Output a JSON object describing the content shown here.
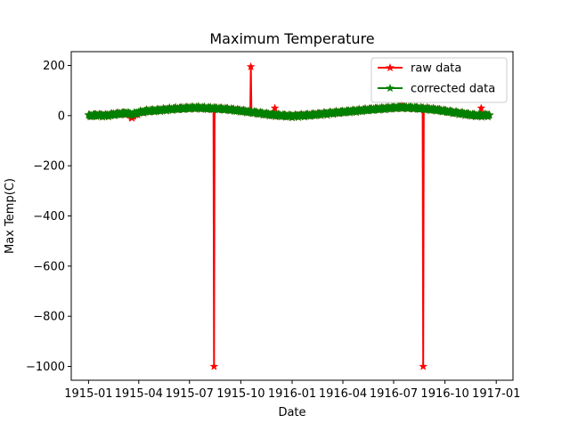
{
  "chart_data": {
    "type": "line",
    "title": "Maximum Temperature",
    "xlabel": "Date",
    "ylabel": "Max Temp(C)",
    "x_range": [
      "1914-12-01",
      "1917-01-31"
    ],
    "ylim": [
      -1055,
      255
    ],
    "x_ticks": [
      {
        "date": "1915-01-01",
        "label": "1915-01"
      },
      {
        "date": "1915-04-01",
        "label": "1915-04"
      },
      {
        "date": "1915-07-01",
        "label": "1915-07"
      },
      {
        "date": "1915-10-01",
        "label": "1915-10"
      },
      {
        "date": "1916-01-01",
        "label": "1916-01"
      },
      {
        "date": "1916-04-01",
        "label": "1916-04"
      },
      {
        "date": "1916-07-01",
        "label": "1916-07"
      },
      {
        "date": "1916-10-01",
        "label": "1916-10"
      },
      {
        "date": "1917-01-01",
        "label": "1917-01"
      }
    ],
    "y_ticks": [
      {
        "value": 200,
        "label": "200"
      },
      {
        "value": 0,
        "label": "0"
      },
      {
        "value": -200,
        "label": "−200"
      },
      {
        "value": -400,
        "label": "−400"
      },
      {
        "value": -600,
        "label": "−600"
      },
      {
        "value": -800,
        "label": "−800"
      },
      {
        "value": -1000,
        "label": "−1000"
      }
    ],
    "grid": false,
    "legend_position": "top-right",
    "series": [
      {
        "name": "raw data",
        "color": "#ff0000",
        "marker": "star",
        "baseline": [
          [
            "1915-01-01",
            -1
          ],
          [
            "1915-01-15",
            2
          ],
          [
            "1915-02-01",
            0
          ],
          [
            "1915-02-15",
            5
          ],
          [
            "1915-03-01",
            8
          ],
          [
            "1915-03-10",
            10
          ],
          [
            "1915-03-20",
            -3
          ],
          [
            "1915-04-01",
            12
          ],
          [
            "1915-04-15",
            18
          ],
          [
            "1915-05-01",
            20
          ],
          [
            "1915-05-15",
            23
          ],
          [
            "1915-06-01",
            26
          ],
          [
            "1915-06-15",
            28
          ],
          [
            "1915-07-01",
            30
          ],
          [
            "1915-07-15",
            31
          ],
          [
            "1915-08-01",
            29
          ],
          [
            "1915-08-15",
            28
          ],
          [
            "1915-09-01",
            26
          ],
          [
            "1915-09-15",
            23
          ],
          [
            "1915-10-01",
            19
          ],
          [
            "1915-10-15",
            15
          ],
          [
            "1915-11-01",
            10
          ],
          [
            "1915-11-15",
            6
          ],
          [
            "1915-12-01",
            2
          ],
          [
            "1915-12-15",
            0
          ],
          [
            "1916-01-01",
            -2
          ],
          [
            "1916-01-15",
            0
          ],
          [
            "1916-02-01",
            2
          ],
          [
            "1916-02-15",
            5
          ],
          [
            "1916-03-01",
            8
          ],
          [
            "1916-03-15",
            11
          ],
          [
            "1916-04-01",
            14
          ],
          [
            "1916-04-15",
            17
          ],
          [
            "1916-05-01",
            20
          ],
          [
            "1916-05-15",
            23
          ],
          [
            "1916-06-01",
            26
          ],
          [
            "1916-06-15",
            28
          ],
          [
            "1916-07-01",
            31
          ],
          [
            "1916-07-15",
            32
          ],
          [
            "1916-08-01",
            31
          ],
          [
            "1916-08-15",
            29
          ],
          [
            "1916-09-01",
            26
          ],
          [
            "1916-09-15",
            23
          ],
          [
            "1916-10-01",
            18
          ],
          [
            "1916-10-15",
            13
          ],
          [
            "1916-11-01",
            8
          ],
          [
            "1916-11-15",
            3
          ],
          [
            "1916-12-01",
            0
          ],
          [
            "1916-12-20",
            2
          ]
        ],
        "outliers": [
          {
            "date": "1915-03-20",
            "value": -10
          },
          {
            "date": "1915-08-14",
            "value": -1000
          },
          {
            "date": "1915-10-19",
            "value": 195
          },
          {
            "date": "1915-12-01",
            "value": 30
          },
          {
            "date": "1916-07-15",
            "value": 45
          },
          {
            "date": "1916-08-23",
            "value": -1000
          },
          {
            "date": "1916-12-05",
            "value": 30
          }
        ]
      },
      {
        "name": "corrected data",
        "color": "#008000",
        "marker": "star",
        "baseline": [
          [
            "1915-01-01",
            -1
          ],
          [
            "1915-01-15",
            2
          ],
          [
            "1915-02-01",
            0
          ],
          [
            "1915-02-15",
            5
          ],
          [
            "1915-03-01",
            8
          ],
          [
            "1915-03-10",
            10
          ],
          [
            "1915-03-20",
            5
          ],
          [
            "1915-04-01",
            12
          ],
          [
            "1915-04-15",
            18
          ],
          [
            "1915-05-01",
            20
          ],
          [
            "1915-05-15",
            23
          ],
          [
            "1915-06-01",
            26
          ],
          [
            "1915-06-15",
            28
          ],
          [
            "1915-07-01",
            30
          ],
          [
            "1915-07-15",
            31
          ],
          [
            "1915-08-01",
            29
          ],
          [
            "1915-08-15",
            28
          ],
          [
            "1915-09-01",
            26
          ],
          [
            "1915-09-15",
            23
          ],
          [
            "1915-10-01",
            19
          ],
          [
            "1915-10-15",
            15
          ],
          [
            "1915-11-01",
            10
          ],
          [
            "1915-11-15",
            6
          ],
          [
            "1915-12-01",
            2
          ],
          [
            "1915-12-15",
            0
          ],
          [
            "1916-01-01",
            -2
          ],
          [
            "1916-01-15",
            0
          ],
          [
            "1916-02-01",
            2
          ],
          [
            "1916-02-15",
            5
          ],
          [
            "1916-03-01",
            8
          ],
          [
            "1916-03-15",
            11
          ],
          [
            "1916-04-01",
            14
          ],
          [
            "1916-04-15",
            17
          ],
          [
            "1916-05-01",
            20
          ],
          [
            "1916-05-15",
            23
          ],
          [
            "1916-06-01",
            26
          ],
          [
            "1916-06-15",
            28
          ],
          [
            "1916-07-01",
            31
          ],
          [
            "1916-07-15",
            32
          ],
          [
            "1916-08-01",
            31
          ],
          [
            "1916-08-15",
            29
          ],
          [
            "1916-09-01",
            26
          ],
          [
            "1916-09-15",
            23
          ],
          [
            "1916-10-01",
            18
          ],
          [
            "1916-10-15",
            13
          ],
          [
            "1916-11-01",
            8
          ],
          [
            "1916-11-15",
            3
          ],
          [
            "1916-12-01",
            0
          ],
          [
            "1916-12-20",
            2
          ]
        ]
      }
    ]
  }
}
